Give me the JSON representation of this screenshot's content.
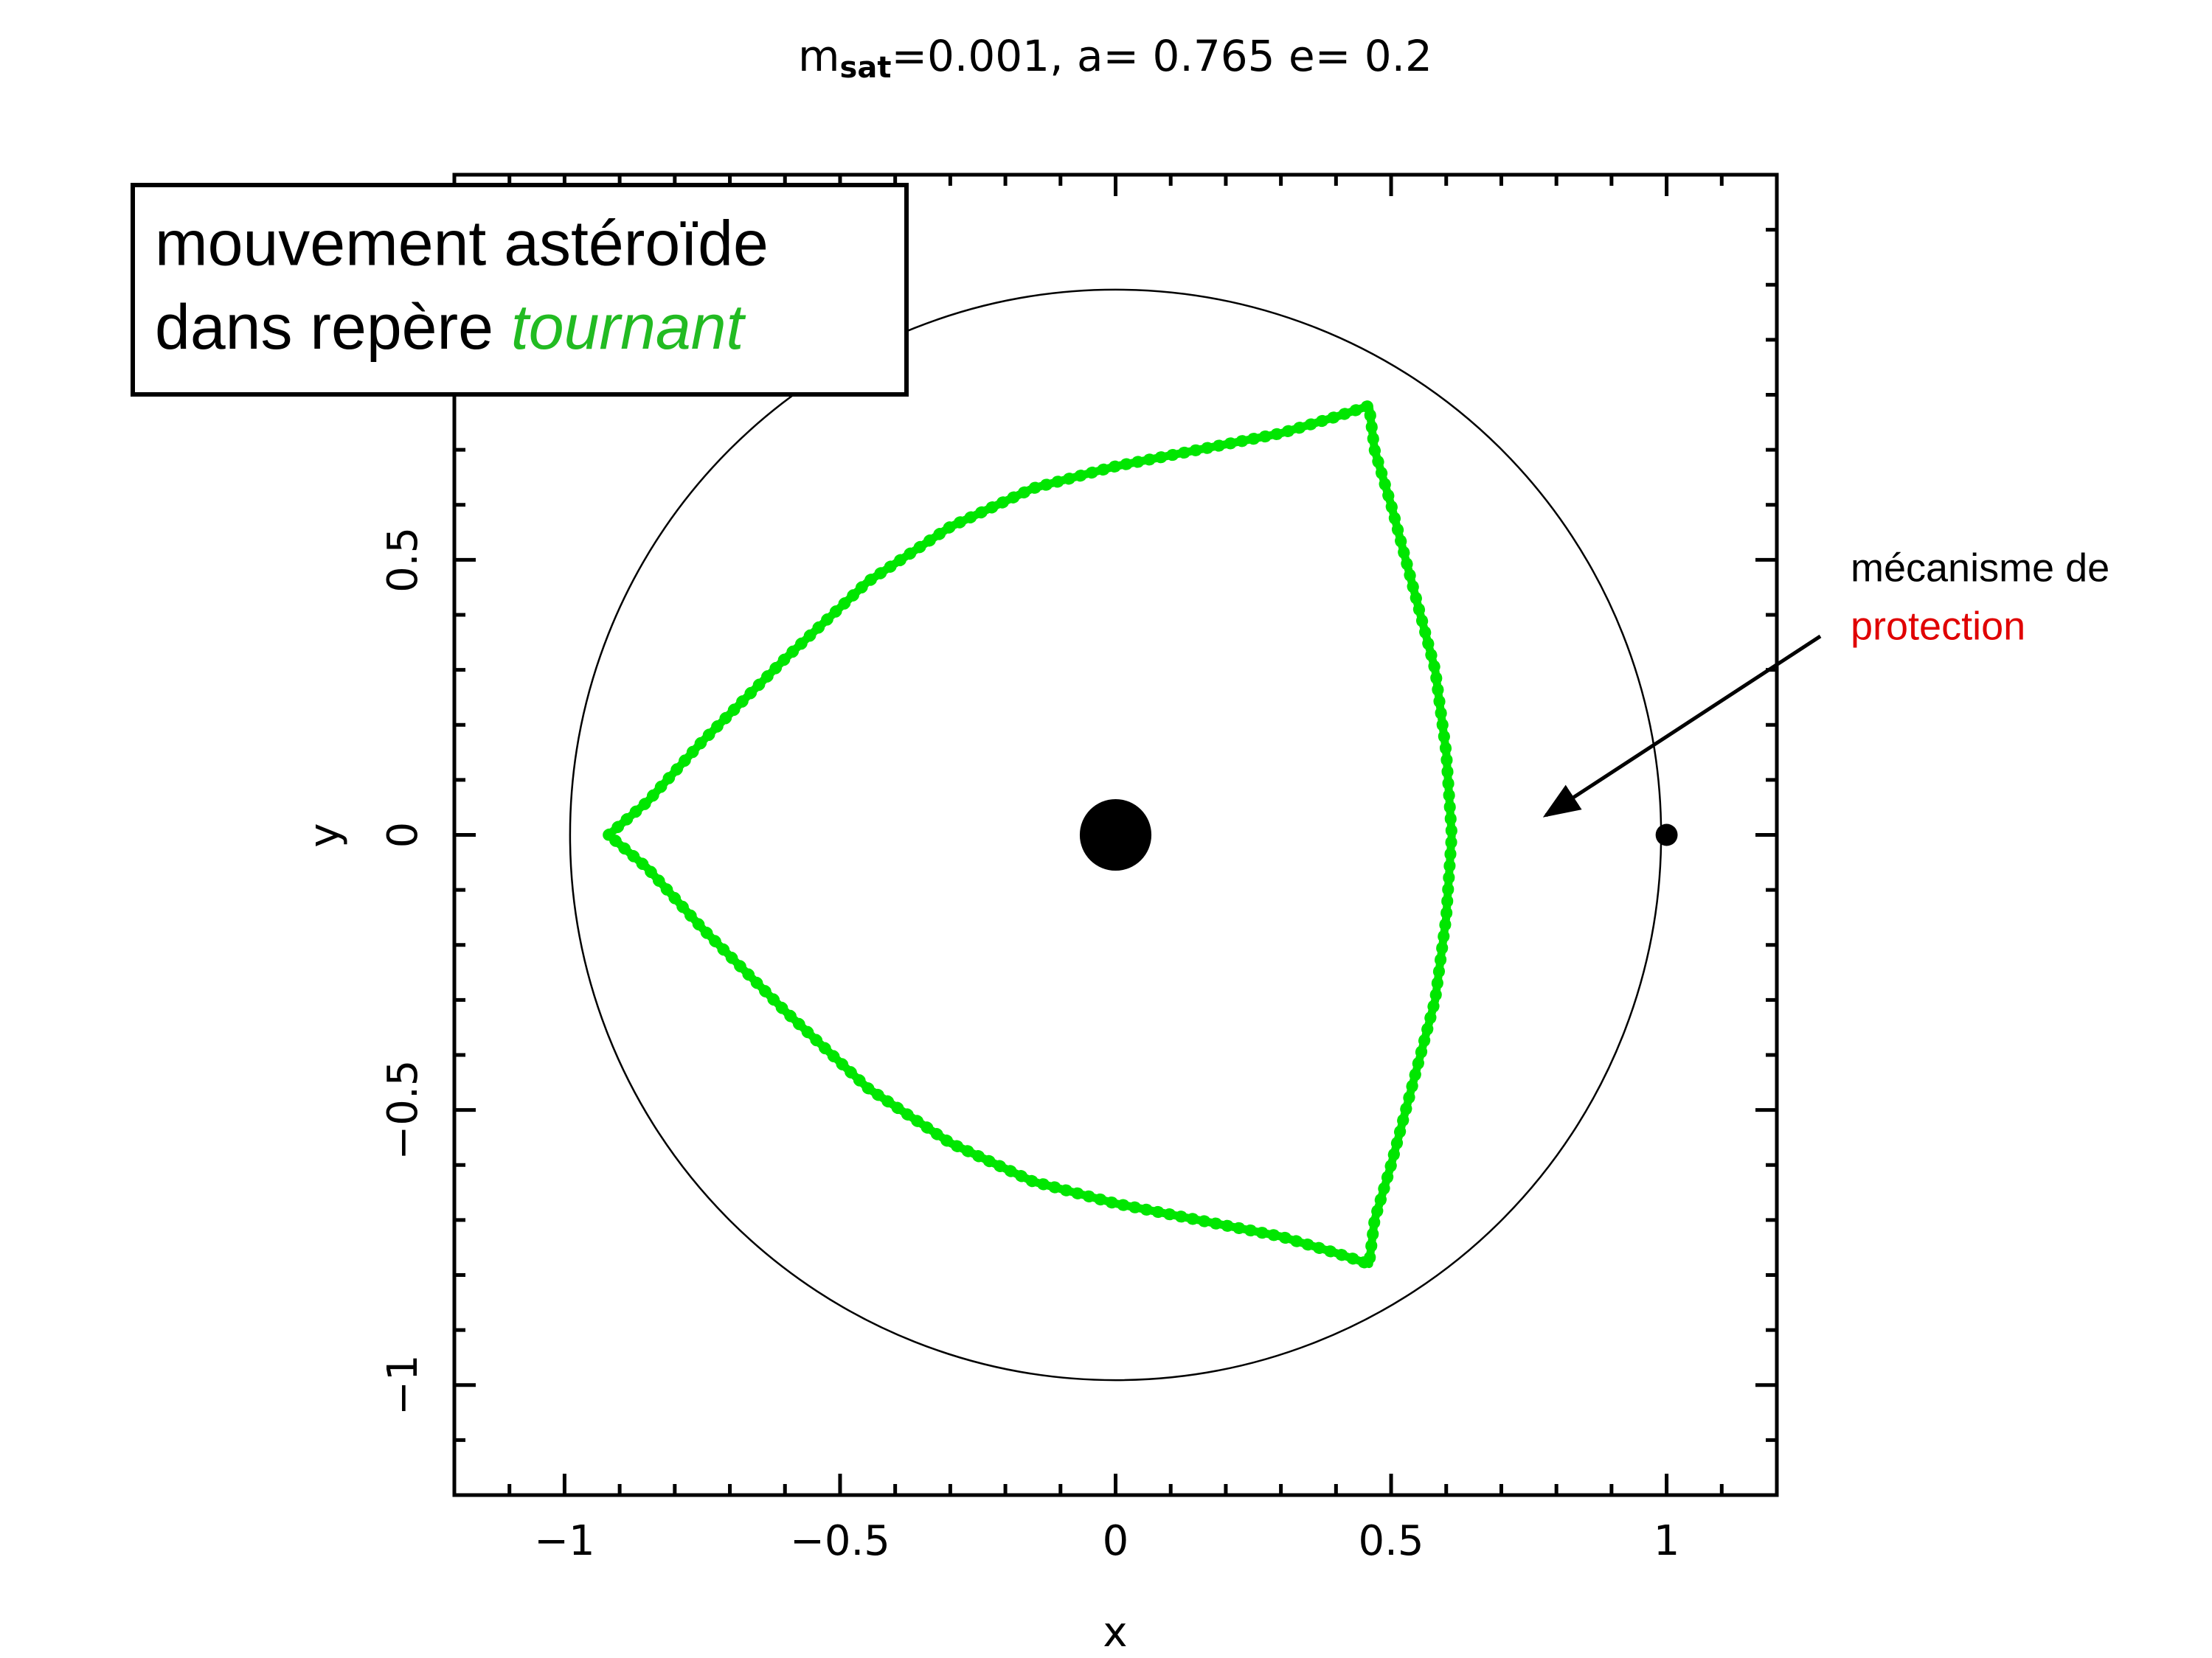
{
  "chart_data": {
    "type": "line",
    "title": {
      "main": "m",
      "sub": "sat",
      "rest": "=0.001, a= 0.765 e= 0.2"
    },
    "xlabel": "x",
    "ylabel": "y",
    "xlim": [
      -1.2,
      1.2
    ],
    "ylim": [
      -1.2,
      1.2
    ],
    "xticks": [
      {
        "value": -1,
        "label": "−1"
      },
      {
        "value": -0.5,
        "label": "−0.5"
      },
      0,
      0.5,
      1
    ],
    "yticks": [
      {
        "value": -1,
        "label": "−1"
      },
      {
        "value": -0.5,
        "label": "−0.5"
      },
      0,
      0.5
    ],
    "xminorticks": [
      -1.1,
      -0.9,
      -0.8,
      -0.7,
      -0.6,
      -0.4,
      -0.3,
      -0.2,
      -0.1,
      0.1,
      0.2,
      0.3,
      0.4,
      0.6,
      0.7,
      0.8,
      0.9,
      1.1
    ],
    "yminorticks": [
      -1.1,
      -0.9,
      -0.8,
      -0.7,
      -0.6,
      -0.4,
      -0.3,
      -0.2,
      -0.1,
      0.1,
      0.2,
      0.3,
      0.4,
      0.6,
      0.7,
      0.8,
      0.9,
      1,
      1.1
    ],
    "circle_radius": 0.99,
    "bodies": [
      {
        "x": 0,
        "y": 0,
        "r": 0.065
      },
      {
        "x": 1,
        "y": 0,
        "r": 0.02
      }
    ],
    "series": [
      {
        "name": "asteroid",
        "color": "#00e600",
        "x": [
          -0.92,
          -0.85,
          -0.75,
          -0.6,
          -0.45,
          -0.3,
          -0.15,
          0,
          0.15,
          0.3,
          0.4,
          0.46,
          0.47,
          0.5,
          0.54,
          0.58,
          0.6,
          0.61,
          0.6,
          0.58,
          0.54,
          0.5,
          0.47,
          0.46,
          0.4,
          0.3,
          0.15,
          0,
          -0.15,
          -0.3,
          -0.45,
          -0.6,
          -0.75,
          -0.85,
          -0.92
        ],
        "y": [
          0,
          0.06,
          0.17,
          0.32,
          0.46,
          0.56,
          0.63,
          0.67,
          0.7,
          0.73,
          0.76,
          0.78,
          0.7,
          0.6,
          0.45,
          0.3,
          0.15,
          0,
          -0.15,
          -0.3,
          -0.45,
          -0.6,
          -0.7,
          -0.78,
          -0.76,
          -0.73,
          -0.7,
          -0.67,
          -0.63,
          -0.56,
          -0.46,
          -0.32,
          -0.17,
          -0.06,
          0
        ]
      }
    ],
    "annotations": {
      "box_line1": "mouvement astéroïde",
      "box_line2": "dans repère ",
      "box_highlight": "tournant",
      "side_line1": "mécanisme de",
      "side_line2": "protection"
    }
  }
}
